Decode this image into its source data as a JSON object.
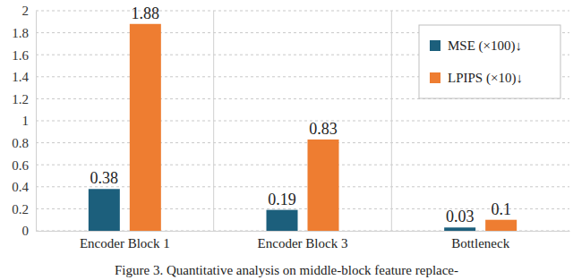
{
  "chart_data": {
    "type": "bar",
    "title": "Figure 3. Quantitative analysis on middle-block feature replace-",
    "categories": [
      "Encoder Block 1",
      "Encoder Block 3",
      "Bottleneck"
    ],
    "series": [
      {
        "name": "MSE (×100)↓",
        "color": "#1c5f7c",
        "values": [
          0.38,
          0.19,
          0.03
        ]
      },
      {
        "name": "LPIPS (×10)↓",
        "color": "#ee7d31",
        "values": [
          1.88,
          0.83,
          0.1
        ]
      }
    ],
    "ylim": [
      0,
      2
    ],
    "yticks": [
      0,
      0.2,
      0.4,
      0.6,
      0.8,
      1,
      1.2,
      1.4,
      1.6,
      1.8,
      2
    ],
    "grid": true,
    "legend": "upper right",
    "data_labels": true
  }
}
